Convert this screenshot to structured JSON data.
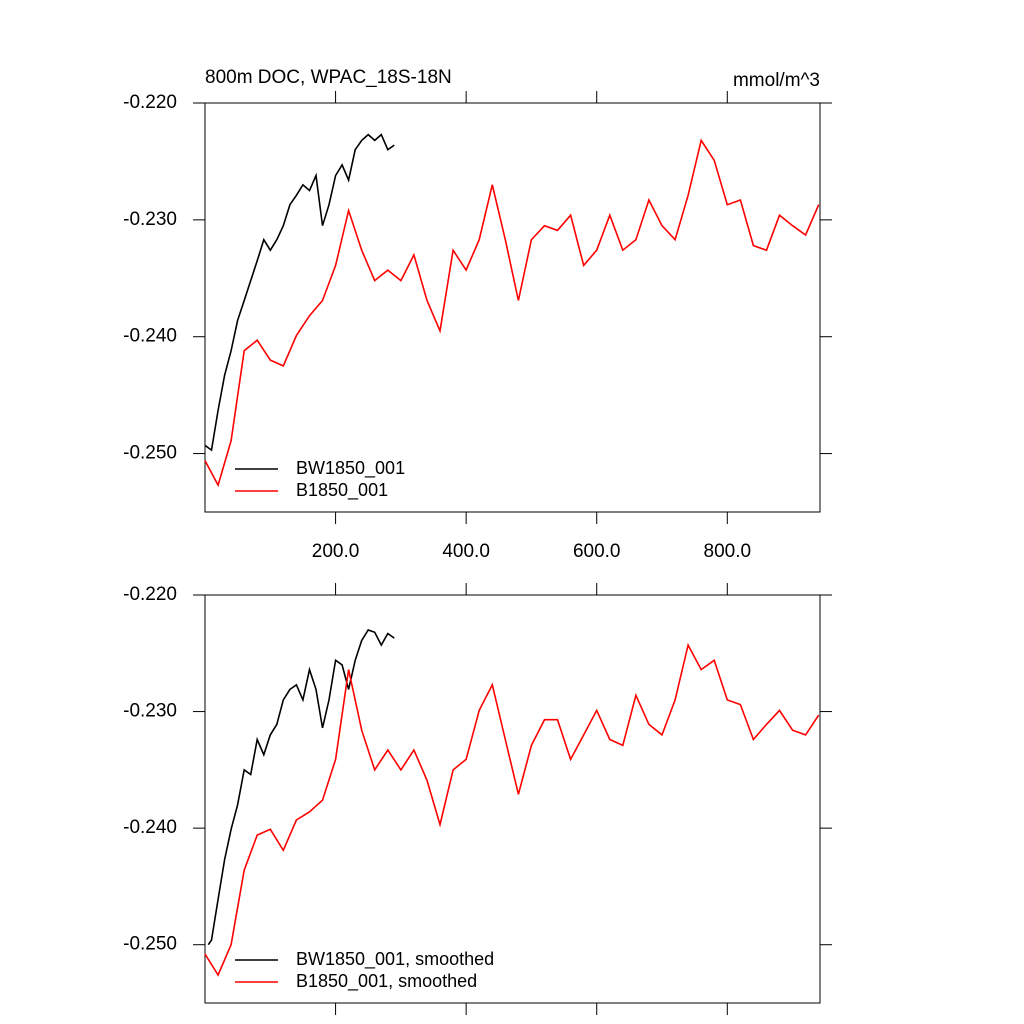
{
  "chart_data": [
    {
      "type": "line",
      "title": "800m DOC, WPAC_18S-18N",
      "units": "mmol/m^3",
      "xlim": [
        0,
        942
      ],
      "ylim": [
        -0.255,
        -0.22
      ],
      "xticks": [
        {
          "value": 200,
          "label": "200.0"
        },
        {
          "value": 400,
          "label": "400.0"
        },
        {
          "value": 600,
          "label": "600.0"
        },
        {
          "value": 800,
          "label": "800.0"
        }
      ],
      "yticks": [
        {
          "value": -0.25,
          "label": "-0.250"
        },
        {
          "value": -0.24,
          "label": "-0.240"
        },
        {
          "value": -0.23,
          "label": "-0.230"
        },
        {
          "value": -0.22,
          "label": "-0.220"
        }
      ],
      "legend": "lower left",
      "series": [
        {
          "name": "BW1850_001",
          "color": "#000000",
          "x": [
            0,
            10,
            20,
            30,
            40,
            50,
            60,
            70,
            80,
            90,
            100,
            110,
            120,
            130,
            140,
            150,
            160,
            170,
            180,
            190,
            200,
            210,
            220,
            230,
            240,
            250,
            260,
            270,
            280,
            290
          ],
          "values": [
            -0.2493,
            -0.2497,
            -0.2463,
            -0.2433,
            -0.2412,
            -0.2386,
            -0.2369,
            -0.2352,
            -0.2335,
            -0.2317,
            -0.2326,
            -0.2317,
            -0.2305,
            -0.2287,
            -0.2279,
            -0.227,
            -0.2275,
            -0.2262,
            -0.2305,
            -0.2287,
            -0.2262,
            -0.2253,
            -0.2266,
            -0.224,
            -0.2232,
            -0.2227,
            -0.2232,
            -0.2227,
            -0.224,
            -0.2236
          ]
        },
        {
          "name": "B1850_001",
          "color": "#ff0000",
          "x": [
            0,
            20,
            40,
            60,
            80,
            100,
            120,
            140,
            160,
            180,
            200,
            220,
            240,
            260,
            280,
            300,
            320,
            340,
            360,
            380,
            400,
            420,
            440,
            460,
            480,
            500,
            520,
            540,
            560,
            580,
            600,
            620,
            640,
            660,
            680,
            700,
            720,
            740,
            760,
            780,
            800,
            820,
            840,
            860,
            880,
            900,
            920,
            940
          ],
          "values": [
            -0.2506,
            -0.2527,
            -0.2489,
            -0.2412,
            -0.2403,
            -0.242,
            -0.2425,
            -0.2399,
            -0.2382,
            -0.2369,
            -0.2339,
            -0.2292,
            -0.2326,
            -0.2352,
            -0.2343,
            -0.2352,
            -0.233,
            -0.2369,
            -0.2395,
            -0.2326,
            -0.2343,
            -0.2317,
            -0.227,
            -0.2317,
            -0.2369,
            -0.2317,
            -0.2305,
            -0.2309,
            -0.2296,
            -0.2339,
            -0.2326,
            -0.2296,
            -0.2326,
            -0.2317,
            -0.2283,
            -0.2305,
            -0.2317,
            -0.2279,
            -0.2232,
            -0.2249,
            -0.2287,
            -0.2283,
            -0.2322,
            -0.2326,
            -0.2296,
            -0.2305,
            -0.2313,
            -0.2287
          ]
        }
      ]
    },
    {
      "type": "line",
      "xlim": [
        0,
        942
      ],
      "ylim": [
        -0.255,
        -0.22
      ],
      "xticks": [
        200,
        400,
        600,
        800
      ],
      "yticks": [
        {
          "value": -0.25,
          "label": "-0.250"
        },
        {
          "value": -0.24,
          "label": "-0.240"
        },
        {
          "value": -0.23,
          "label": "-0.230"
        },
        {
          "value": -0.22,
          "label": "-0.220"
        }
      ],
      "legend": "lower left",
      "series": [
        {
          "name": "BW1850_001, smoothed",
          "color": "#000000",
          "x": [
            5,
            10,
            20,
            30,
            40,
            50,
            60,
            70,
            80,
            90,
            100,
            110,
            120,
            130,
            140,
            150,
            160,
            170,
            180,
            190,
            200,
            210,
            220,
            230,
            240,
            250,
            260,
            270,
            280,
            290
          ],
          "values": [
            -0.25,
            -0.2496,
            -0.2461,
            -0.2427,
            -0.2401,
            -0.238,
            -0.235,
            -0.2354,
            -0.2324,
            -0.2337,
            -0.232,
            -0.2311,
            -0.229,
            -0.2281,
            -0.2277,
            -0.229,
            -0.2264,
            -0.2281,
            -0.2314,
            -0.229,
            -0.2256,
            -0.226,
            -0.2281,
            -0.2256,
            -0.2239,
            -0.223,
            -0.2232,
            -0.2243,
            -0.2233,
            -0.2237
          ]
        },
        {
          "name": "B1850_001, smoothed",
          "color": "#ff0000",
          "x": [
            0,
            20,
            40,
            60,
            80,
            100,
            120,
            140,
            160,
            180,
            200,
            220,
            240,
            260,
            280,
            300,
            320,
            340,
            360,
            380,
            400,
            420,
            440,
            460,
            480,
            500,
            520,
            540,
            560,
            580,
            600,
            620,
            640,
            660,
            680,
            700,
            720,
            740,
            760,
            780,
            800,
            820,
            840,
            860,
            880,
            900,
            920,
            940
          ],
          "values": [
            -0.2508,
            -0.2526,
            -0.25,
            -0.2436,
            -0.2406,
            -0.2401,
            -0.2419,
            -0.2393,
            -0.2386,
            -0.2376,
            -0.2341,
            -0.2264,
            -0.2316,
            -0.235,
            -0.2333,
            -0.235,
            -0.2333,
            -0.2359,
            -0.2397,
            -0.235,
            -0.2341,
            -0.2299,
            -0.2277,
            -0.2324,
            -0.2371,
            -0.2329,
            -0.2307,
            -0.2307,
            -0.2341,
            -0.232,
            -0.2299,
            -0.2324,
            -0.2329,
            -0.2286,
            -0.2311,
            -0.232,
            -0.229,
            -0.2243,
            -0.2264,
            -0.2256,
            -0.229,
            -0.2294,
            -0.2324,
            -0.2311,
            -0.2299,
            -0.2316,
            -0.232,
            -0.2303
          ]
        }
      ]
    }
  ]
}
